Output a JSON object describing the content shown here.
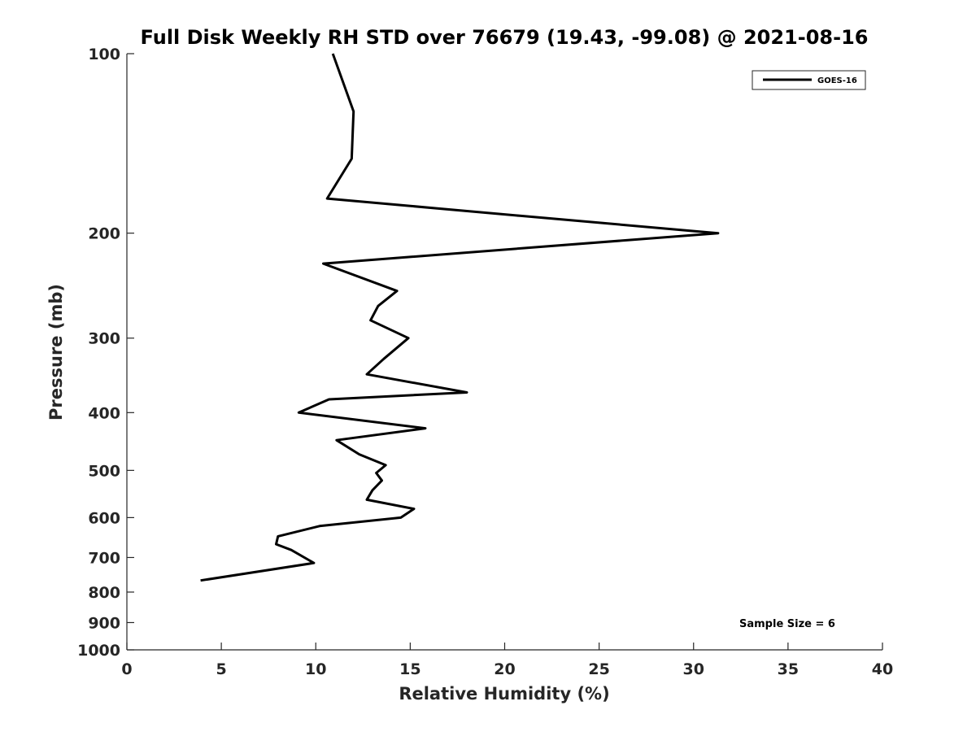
{
  "chart_data": {
    "type": "line",
    "title": "Full Disk Weekly RH STD over 76679 (19.43, -99.08) @ 2021-08-16",
    "xlabel": "Relative Humidity (%)",
    "ylabel": "Pressure (mb)",
    "xlim": [
      0,
      40
    ],
    "ylim": [
      100,
      1000
    ],
    "yscale": "log",
    "y_reversed": true,
    "grid": false,
    "xticks": [
      0,
      5,
      10,
      15,
      20,
      25,
      30,
      35,
      40
    ],
    "xtick_labels": [
      "0",
      "5",
      "10",
      "15",
      "20",
      "25",
      "30",
      "35",
      "40"
    ],
    "yticks": [
      100,
      200,
      300,
      400,
      500,
      600,
      700,
      800,
      900,
      1000
    ],
    "ytick_labels": [
      "100",
      "200",
      "300",
      "400",
      "500",
      "600",
      "700",
      "800",
      "900",
      "1000"
    ],
    "legend": {
      "position": "top-right",
      "entries": [
        "GOES-16"
      ]
    },
    "annotations": [
      {
        "text": "Sample Size = 6",
        "position": "bottom-right"
      }
    ],
    "series": [
      {
        "name": "GOES-16",
        "color": "#000000",
        "points": [
          {
            "x": 10.9,
            "y": 100
          },
          {
            "x": 12.0,
            "y": 125
          },
          {
            "x": 11.9,
            "y": 150
          },
          {
            "x": 10.6,
            "y": 175
          },
          {
            "x": 20.8,
            "y": 187
          },
          {
            "x": 31.3,
            "y": 200
          },
          {
            "x": 10.4,
            "y": 225
          },
          {
            "x": 14.3,
            "y": 250
          },
          {
            "x": 13.3,
            "y": 265
          },
          {
            "x": 12.9,
            "y": 280
          },
          {
            "x": 14.9,
            "y": 300
          },
          {
            "x": 13.6,
            "y": 325
          },
          {
            "x": 12.7,
            "y": 345
          },
          {
            "x": 18.0,
            "y": 370
          },
          {
            "x": 10.7,
            "y": 380
          },
          {
            "x": 9.1,
            "y": 400
          },
          {
            "x": 15.8,
            "y": 425
          },
          {
            "x": 11.1,
            "y": 445
          },
          {
            "x": 12.3,
            "y": 470
          },
          {
            "x": 13.7,
            "y": 490
          },
          {
            "x": 13.2,
            "y": 505
          },
          {
            "x": 13.5,
            "y": 520
          },
          {
            "x": 13.0,
            "y": 540
          },
          {
            "x": 12.7,
            "y": 560
          },
          {
            "x": 15.2,
            "y": 580
          },
          {
            "x": 14.5,
            "y": 600
          },
          {
            "x": 10.2,
            "y": 620
          },
          {
            "x": 8.0,
            "y": 645
          },
          {
            "x": 7.9,
            "y": 665
          },
          {
            "x": 8.7,
            "y": 680
          },
          {
            "x": 9.9,
            "y": 715
          },
          {
            "x": 3.9,
            "y": 765
          }
        ]
      }
    ]
  }
}
